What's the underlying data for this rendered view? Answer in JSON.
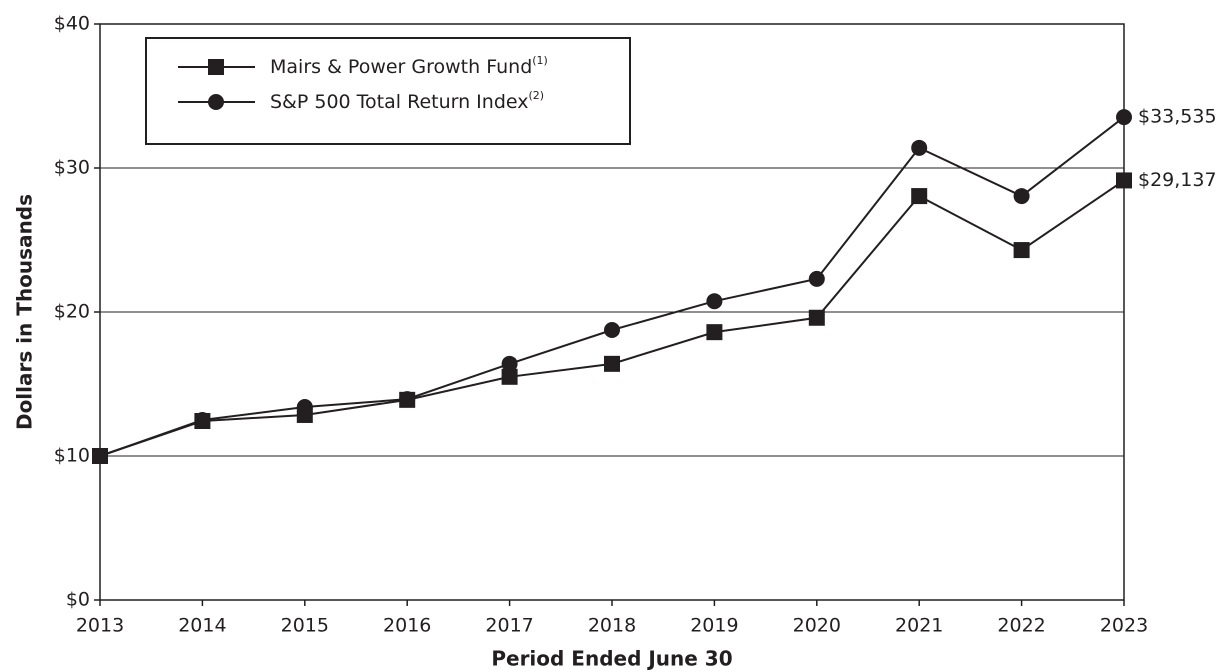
{
  "chart_data": {
    "type": "line",
    "categories": [
      "2013",
      "2014",
      "2015",
      "2016",
      "2017",
      "2018",
      "2019",
      "2020",
      "2021",
      "2022",
      "2023"
    ],
    "series": [
      {
        "name": "Mairs & Power Growth Fund",
        "note": "(1)",
        "marker": "square",
        "color": "#231f20",
        "values": [
          10,
          12.43,
          12.85,
          13.9,
          15.5,
          16.4,
          18.6,
          19.6,
          28.05,
          24.3,
          29.137
        ],
        "value_labels": [
          null,
          null,
          null,
          null,
          null,
          null,
          null,
          null,
          null,
          null,
          "$29,137"
        ]
      },
      {
        "name": "S&P 500 Total Return Index",
        "note": "(2)",
        "marker": "circle",
        "color": "#231f20",
        "values": [
          10,
          12.5,
          13.4,
          13.95,
          16.4,
          18.75,
          20.75,
          22.3,
          31.4,
          28.05,
          33.535
        ],
        "value_labels": [
          null,
          null,
          null,
          null,
          null,
          null,
          null,
          null,
          null,
          null,
          "$33,535"
        ]
      }
    ],
    "ylim": [
      0,
      40
    ],
    "yticks": [
      {
        "value": 0,
        "label": "$0"
      },
      {
        "value": 10,
        "label": "$10"
      },
      {
        "value": 20,
        "label": "$20"
      },
      {
        "value": 30,
        "label": "$30"
      },
      {
        "value": 40,
        "label": "$40"
      }
    ],
    "grid": true,
    "y_label": "Dollars in Thousands",
    "x_label": "Period Ended June 30",
    "legend": "top-left"
  }
}
